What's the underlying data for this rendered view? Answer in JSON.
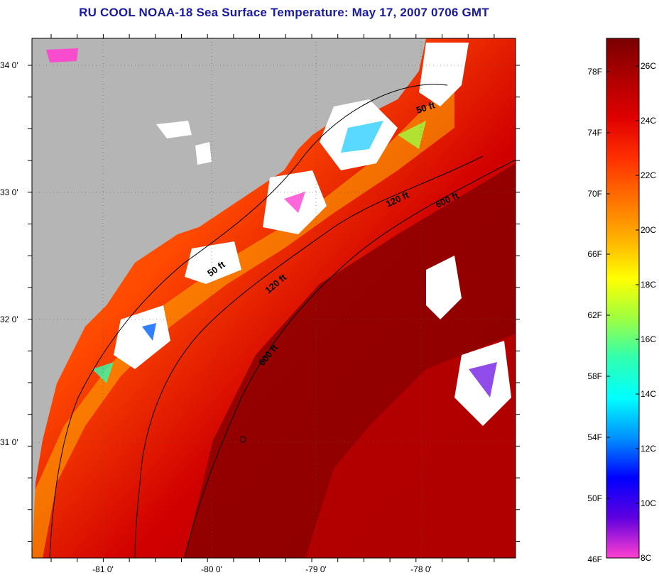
{
  "title": "RU COOL  NOAA-18  Sea Surface Temperature:  May 17, 2007 0706 GMT",
  "axes": {
    "lat_labels": [
      "34 0'",
      "33 0'",
      "32 0'",
      "31 0'"
    ],
    "lon_labels": [
      "-81 0'",
      "-80 0'",
      "-79 0'",
      "-78 0'"
    ]
  },
  "contours": {
    "labels": [
      "50 ft",
      "50 ft",
      "120 ft",
      "120 ft",
      "600 ft",
      "600 ft"
    ]
  },
  "colorbar": {
    "f_labels": [
      "78F",
      "74F",
      "70F",
      "66F",
      "62F",
      "58F",
      "54F",
      "50F",
      "46F"
    ],
    "c_labels": [
      "26C",
      "24C",
      "22C",
      "20C",
      "18C",
      "16C",
      "14C",
      "12C",
      "10C",
      "8C"
    ],
    "colors": [
      "#7a0000",
      "#b00000",
      "#e00000",
      "#ff3000",
      "#ff7000",
      "#ffb000",
      "#ffff00",
      "#a0ff40",
      "#30ffb0",
      "#00ffff",
      "#0090ff",
      "#0000ff",
      "#6000e0",
      "#ff40d0"
    ]
  },
  "colors": {
    "land": "#b5b5b5",
    "cloud": "#ffffff",
    "title": "#1a1aa0"
  }
}
